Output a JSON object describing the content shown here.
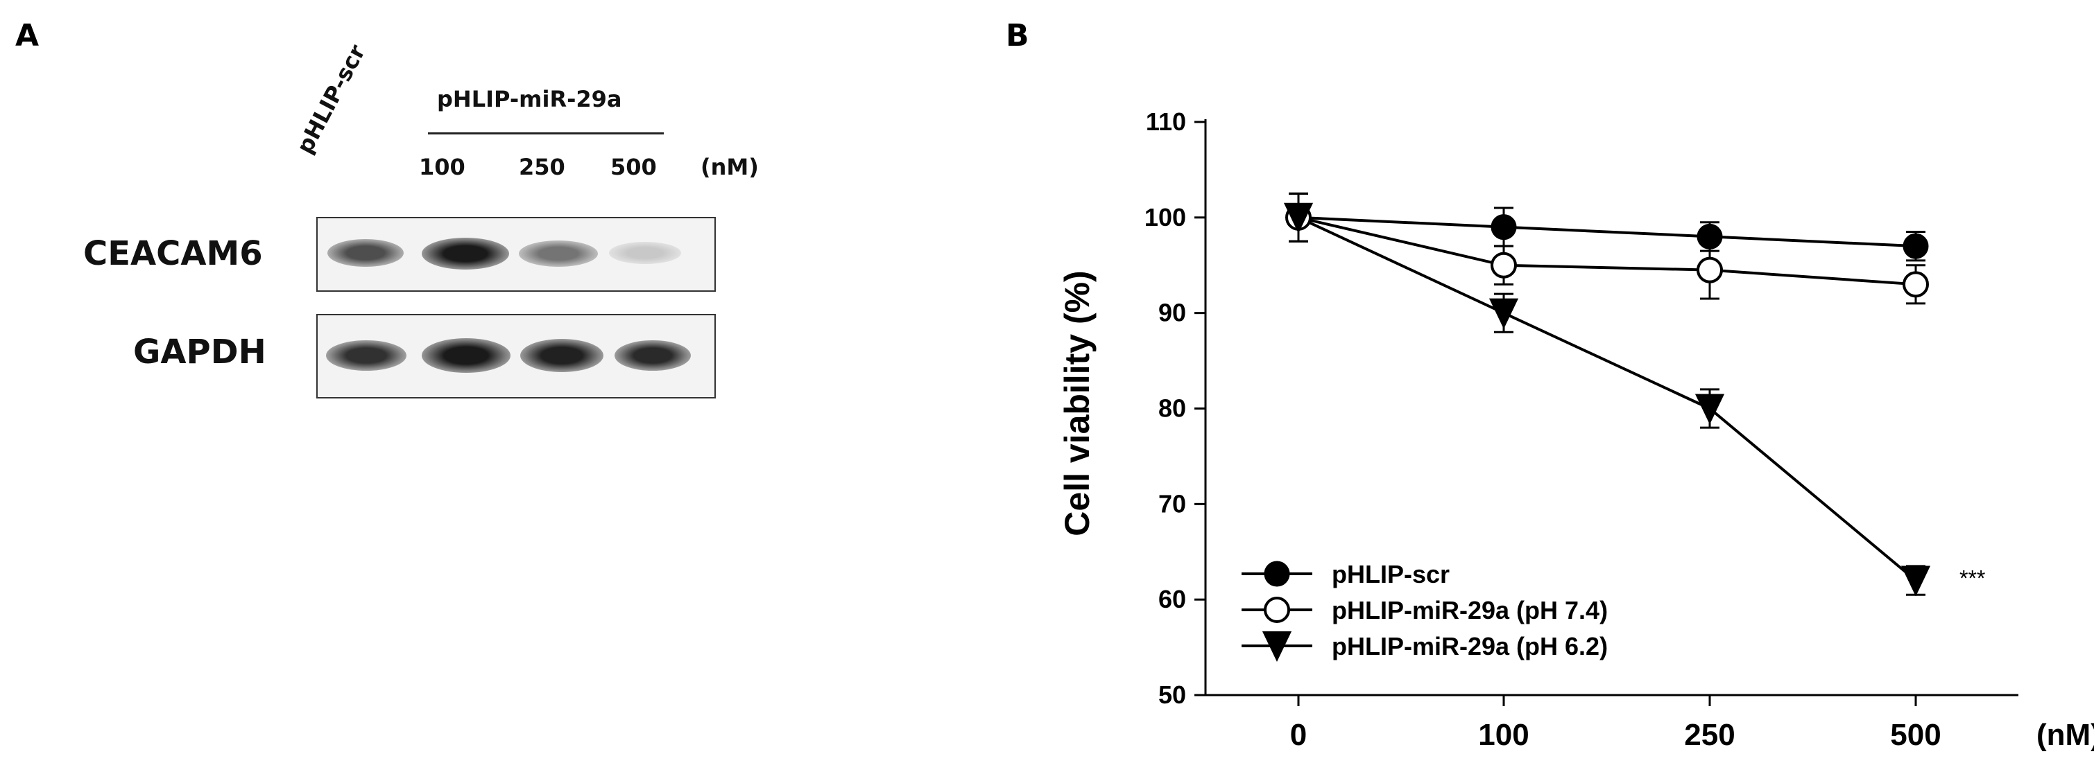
{
  "panel_a": {
    "letter": "A",
    "scr_label": "pHLIP-scr",
    "group_label": "pHLIP-miR-29a",
    "doses": [
      "100",
      "250",
      "500"
    ],
    "unit": "(nM)",
    "rows": [
      {
        "label": "CEACAM6",
        "band_intensity": [
          0.72,
          0.95,
          0.55,
          0.18
        ]
      },
      {
        "label": "GAPDH",
        "band_intensity": [
          0.85,
          0.95,
          0.92,
          0.88
        ]
      }
    ]
  },
  "panel_b": {
    "letter": "B",
    "annotation": "***",
    "colors": {
      "axis": "#000000",
      "filled": "#000000",
      "open": "#ffffff"
    }
  },
  "chart_data": {
    "type": "line",
    "title": "",
    "xlabel": "(nM)",
    "ylabel": "Cell viability (%)",
    "categories": [
      "0",
      "100",
      "250",
      "500"
    ],
    "ylim": [
      50,
      110
    ],
    "yticks": [
      50,
      60,
      70,
      80,
      90,
      100,
      110
    ],
    "grid": false,
    "legend_position": "bottom-left",
    "series": [
      {
        "name": "pHLIP-scr",
        "marker": "filled-circle",
        "values": [
          100,
          99,
          98,
          97
        ],
        "errors": [
          2.5,
          2,
          1.5,
          1.5
        ]
      },
      {
        "name": "pHLIP-miR-29a (pH 7.4)",
        "marker": "open-circle",
        "values": [
          100,
          95,
          94.5,
          93
        ],
        "errors": [
          2.5,
          2,
          3,
          2
        ]
      },
      {
        "name": "pHLIP-miR-29a (pH 6.2)",
        "marker": "filled-triangle-down",
        "values": [
          100,
          90,
          80,
          62
        ],
        "errors": [
          2.5,
          2,
          2,
          1.5
        ]
      }
    ]
  }
}
